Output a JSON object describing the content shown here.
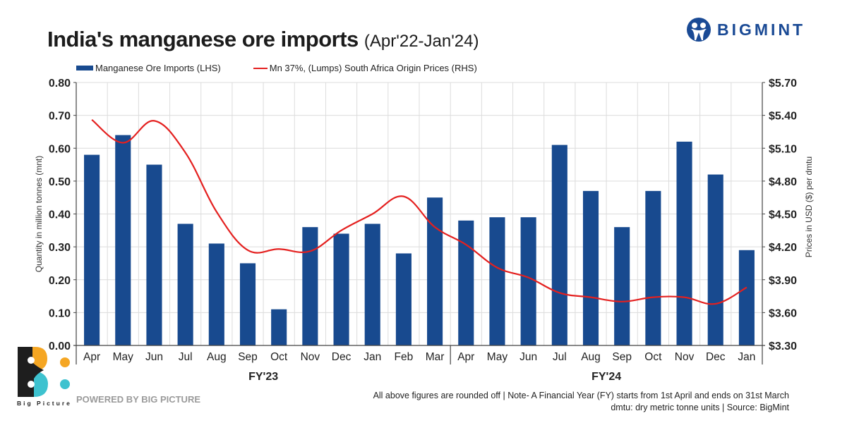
{
  "header": {
    "title_main": "India's manganese ore imports",
    "title_sub": "(Apr'22-Jan'24)",
    "brand_name": "BIGMINT"
  },
  "legend": {
    "bar_label": "Manganese Ore Imports (LHS)",
    "line_label": "Mn 37%, (Lumps) South Africa Origin Prices (RHS)"
  },
  "footer": {
    "note_line1": "All above figures are rounded off | Note- A Financial Year (FY) starts from 1st April and ends on 31st March",
    "note_line2": "dmtu: dry metric tonne units | Source: BigMint",
    "powered_by": "POWERED BY BIG PICTURE",
    "bp_logo_text": "Big Picture"
  },
  "colors": {
    "bar": "#184a8f",
    "line": "#e4201f",
    "grid": "#dcdcdc",
    "axis": "#444444",
    "brand": "#1a4a95"
  },
  "chart_data": {
    "type": "bar",
    "title": "India's manganese ore imports (Apr'22-Jan'24)",
    "categories": [
      "Apr",
      "May",
      "Jun",
      "Jul",
      "Aug",
      "Sep",
      "Oct",
      "Nov",
      "Dec",
      "Jan",
      "Feb",
      "Mar",
      "Apr",
      "May",
      "Jun",
      "Jul",
      "Aug",
      "Sep",
      "Oct",
      "Nov",
      "Dec",
      "Jan"
    ],
    "groups": [
      {
        "label": "FY'23",
        "start": 0,
        "end": 11
      },
      {
        "label": "FY'24",
        "start": 12,
        "end": 21
      }
    ],
    "series": [
      {
        "name": "Manganese Ore Imports (LHS)",
        "type": "bar",
        "axis": "left",
        "values": [
          0.58,
          0.64,
          0.55,
          0.37,
          0.31,
          0.25,
          0.11,
          0.36,
          0.34,
          0.37,
          0.28,
          0.45,
          0.38,
          0.39,
          0.39,
          0.61,
          0.47,
          0.36,
          0.47,
          0.62,
          0.52,
          0.29
        ]
      },
      {
        "name": "Mn 37%, (Lumps) South Africa Origin Prices (RHS)",
        "type": "line",
        "axis": "right",
        "values": [
          5.36,
          5.15,
          5.35,
          5.06,
          4.52,
          4.17,
          4.18,
          4.16,
          4.35,
          4.5,
          4.66,
          4.38,
          4.22,
          4.01,
          3.92,
          3.78,
          3.74,
          3.7,
          3.74,
          3.74,
          3.68,
          3.83
        ]
      }
    ],
    "ylabel": "Quantity in million tonnes (mnt)",
    "ylim": [
      0,
      0.8
    ],
    "yticks": [
      "0.00",
      "0.10",
      "0.20",
      "0.30",
      "0.40",
      "0.50",
      "0.60",
      "0.70",
      "0.80"
    ],
    "y2label": "Prices in USD ($) per dmtu",
    "y2lim": [
      3.3,
      5.7
    ],
    "y2ticks": [
      "$3.30",
      "$3.60",
      "$3.90",
      "$4.20",
      "$4.50",
      "$4.80",
      "$5.10",
      "$5.40",
      "$5.70"
    ],
    "grid": true,
    "legend_position": "top-left"
  }
}
